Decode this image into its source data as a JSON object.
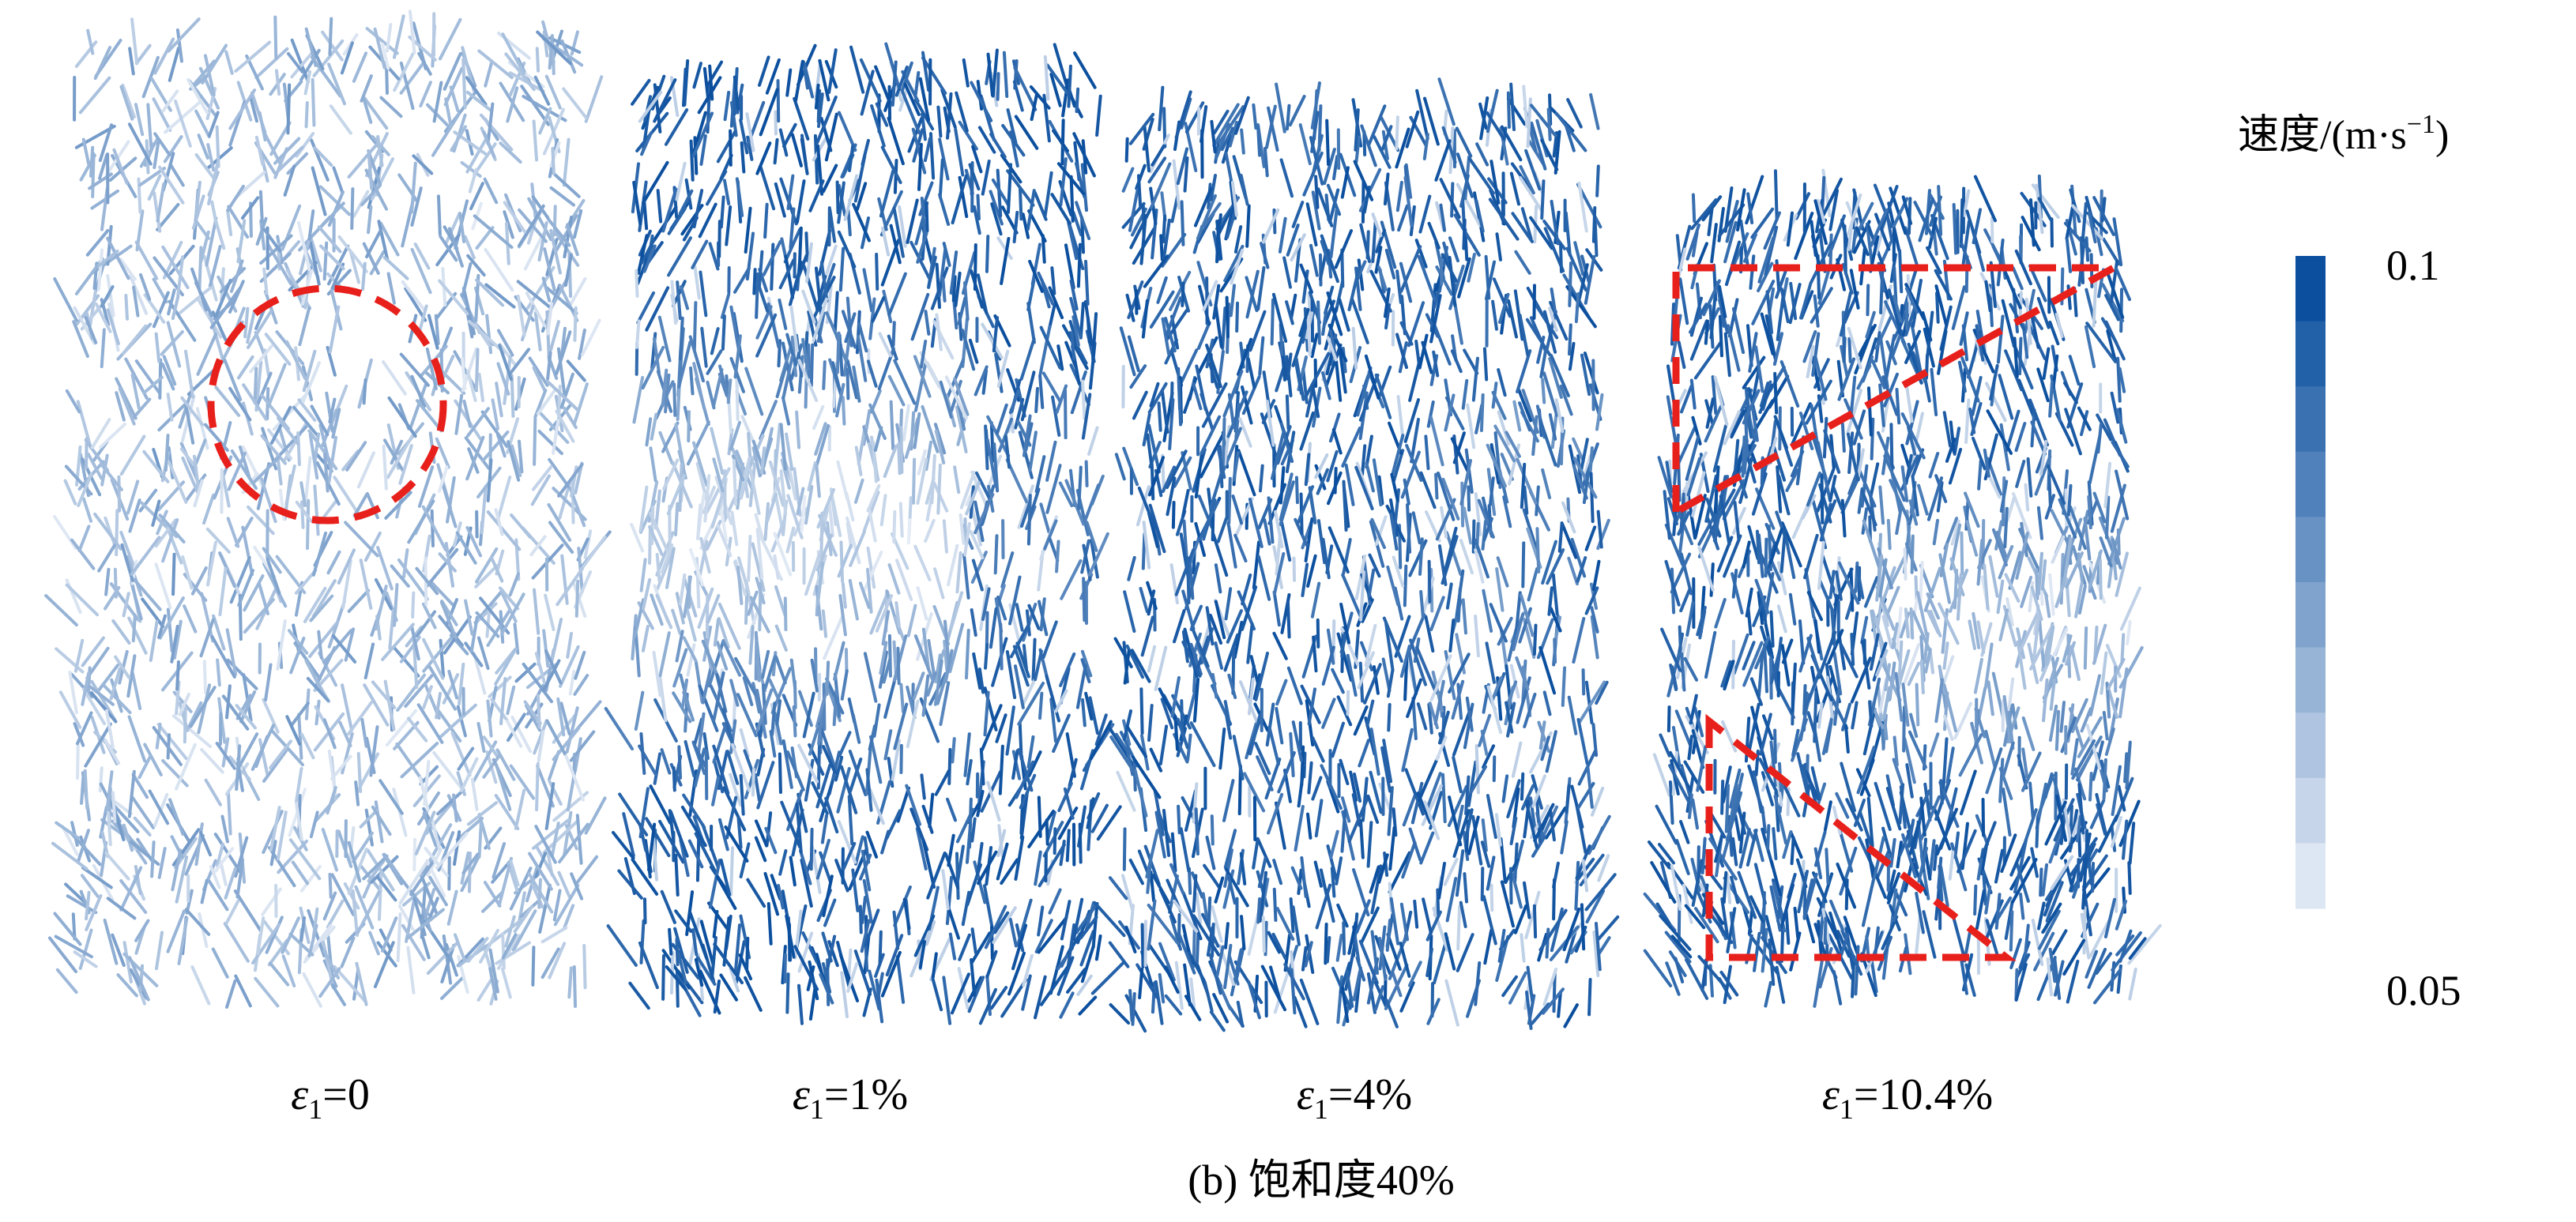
{
  "panels": [
    {
      "label": {
        "symbol": "ε",
        "subscript": "1",
        "value": "=0"
      }
    },
    {
      "label": {
        "symbol": "ε",
        "subscript": "1",
        "value": "=1%"
      }
    },
    {
      "label": {
        "symbol": "ε",
        "subscript": "1",
        "value": "=4%"
      }
    },
    {
      "label": {
        "symbol": "ε",
        "subscript": "1",
        "value": "=10.4%"
      }
    }
  ],
  "colorbar": {
    "title": "速度/(m·s",
    "superscript": "−1",
    "title_end": ")",
    "max_label": "0.1",
    "min_label": "0.05"
  },
  "caption": "(b) 饱和度40%"
}
